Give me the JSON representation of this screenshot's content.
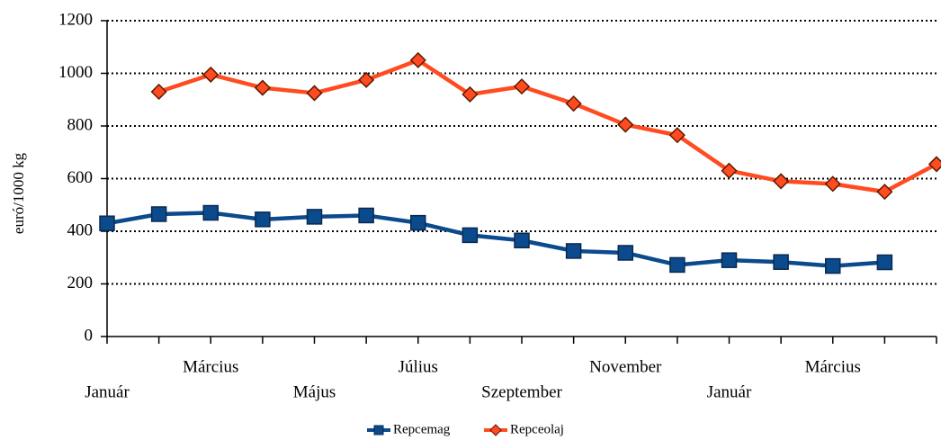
{
  "chart_data": {
    "type": "line",
    "y_label": "euró/1000 kg",
    "categories": [
      "Január",
      null,
      "Március",
      null,
      "Május",
      null,
      "Július",
      null,
      "Szeptember",
      null,
      "November",
      null,
      "Január",
      null,
      "Március",
      null,
      null
    ],
    "series": [
      {
        "name": "Repcemag",
        "color": "#0b4a8c",
        "values": [
          430,
          465,
          470,
          445,
          455,
          460,
          432,
          385,
          365,
          325,
          318,
          272,
          290,
          283,
          268,
          282,
          null
        ]
      },
      {
        "name": "Repceolaj",
        "color": "#ff4b1f",
        "values": [
          null,
          930,
          995,
          945,
          925,
          975,
          1050,
          920,
          950,
          885,
          805,
          765,
          630,
          590,
          580,
          550,
          655
        ]
      }
    ],
    "ylim": [
      0,
      1200
    ],
    "yticks": [
      0,
      200,
      400,
      600,
      800,
      1000,
      1200
    ],
    "grid": true,
    "legend": "bottom"
  }
}
